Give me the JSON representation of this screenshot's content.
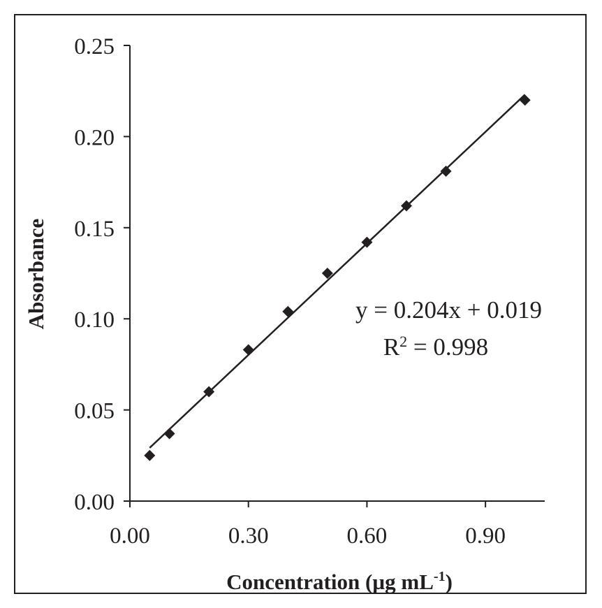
{
  "chart_data": {
    "type": "scatter",
    "xlabel": "Concentration (µg mL",
    "xlabel_sup": "-1",
    "xlabel_close": ")",
    "ylabel": "Absorbance",
    "xlim": [
      0.0,
      1.05
    ],
    "ylim": [
      0.0,
      0.25
    ],
    "xticks": [
      "0.00",
      "0.30",
      "0.60",
      "0.90"
    ],
    "xtick_values": [
      0.0,
      0.3,
      0.6,
      0.9
    ],
    "yticks": [
      "0.00",
      "0.05",
      "0.10",
      "0.15",
      "0.20",
      "0.25"
    ],
    "ytick_values": [
      0.0,
      0.05,
      0.1,
      0.15,
      0.2,
      0.25
    ],
    "grid": false,
    "series": [
      {
        "marker": "diamond",
        "color": "#231f20",
        "x": [
          0.05,
          0.1,
          0.2,
          0.3,
          0.4,
          0.5,
          0.6,
          0.7,
          0.8,
          1.0
        ],
        "y": [
          0.025,
          0.037,
          0.06,
          0.083,
          0.104,
          0.125,
          0.142,
          0.162,
          0.181,
          0.22
        ]
      }
    ],
    "trendline": {
      "slope": 0.204,
      "intercept": 0.019,
      "x_range": [
        0.05,
        1.0
      ]
    },
    "annotations": {
      "equation": "y = 0.204x + 0.019",
      "r2_prefix": "R",
      "r2_sup": "2",
      "r2_rest": " = 0.998"
    }
  }
}
